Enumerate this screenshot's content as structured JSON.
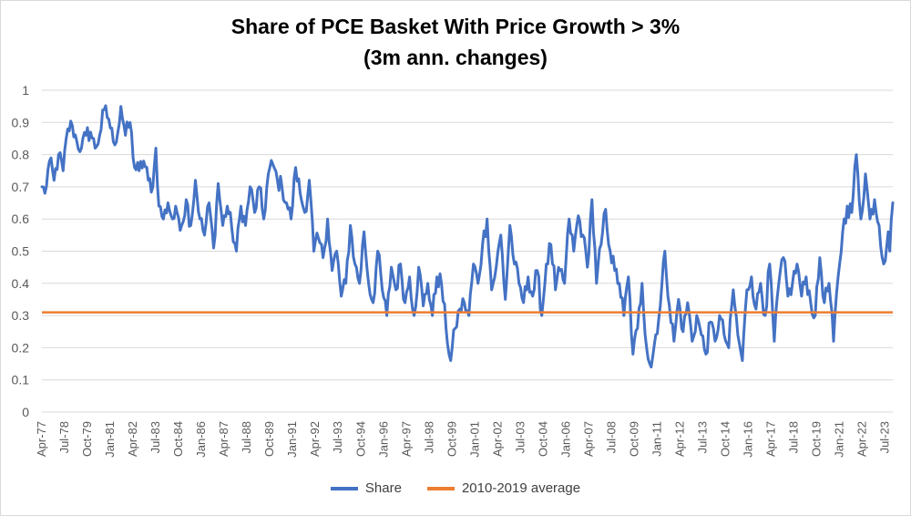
{
  "chart_data": {
    "type": "line",
    "title": "Share of PCE Basket With Price Growth > 3%",
    "subtitle": "(3m ann. changes)",
    "ylim": [
      0,
      1
    ],
    "yticks": [
      "0",
      "0.1",
      "0.2",
      "0.3",
      "0.4",
      "0.5",
      "0.6",
      "0.7",
      "0.8",
      "0.9",
      "1"
    ],
    "x_tick_labels": [
      "Apr-77",
      "Jul-78",
      "Oct-79",
      "Jan-81",
      "Apr-82",
      "Jul-83",
      "Oct-84",
      "Jan-86",
      "Apr-87",
      "Jul-88",
      "Oct-89",
      "Jan-91",
      "Apr-92",
      "Jul-93",
      "Oct-94",
      "Jan-96",
      "Apr-97",
      "Jul-98",
      "Oct-99",
      "Jan-01",
      "Apr-02",
      "Jul-03",
      "Oct-04",
      "Jan-06",
      "Apr-07",
      "Jul-08",
      "Oct-09",
      "Jan-11",
      "Apr-12",
      "Jul-13",
      "Oct-14",
      "Jan-16",
      "Apr-17",
      "Jul-18",
      "Oct-19",
      "Jan-21",
      "Apr-22",
      "Jul-23"
    ],
    "legend_position": "bottom",
    "series": [
      {
        "name": "Share",
        "color": "#4472c4",
        "x_start": "1977-04",
        "x_end": "2023-12",
        "anchors": [
          [
            "1977-04",
            0.7
          ],
          [
            "1977-06",
            0.68
          ],
          [
            "1977-09",
            0.78
          ],
          [
            "1977-12",
            0.72
          ],
          [
            "1978-03",
            0.8
          ],
          [
            "1978-06",
            0.75
          ],
          [
            "1978-09",
            0.88
          ],
          [
            "1978-12",
            0.89
          ],
          [
            "1979-03",
            0.84
          ],
          [
            "1979-06",
            0.82
          ],
          [
            "1979-09",
            0.86
          ],
          [
            "1979-12",
            0.87
          ],
          [
            "1980-03",
            0.82
          ],
          [
            "1980-06",
            0.86
          ],
          [
            "1980-09",
            0.94
          ],
          [
            "1980-12",
            0.91
          ],
          [
            "1981-03",
            0.84
          ],
          [
            "1981-06",
            0.87
          ],
          [
            "1981-08",
            0.95
          ],
          [
            "1981-11",
            0.86
          ],
          [
            "1982-02",
            0.9
          ],
          [
            "1982-05",
            0.76
          ],
          [
            "1982-08",
            0.75
          ],
          [
            "1982-11",
            0.78
          ],
          [
            "1983-02",
            0.72
          ],
          [
            "1983-05",
            0.7
          ],
          [
            "1983-07",
            0.82
          ],
          [
            "1983-09",
            0.64
          ],
          [
            "1983-12",
            0.6
          ],
          [
            "1984-03",
            0.65
          ],
          [
            "1984-06",
            0.6
          ],
          [
            "1984-09",
            0.62
          ],
          [
            "1984-12",
            0.58
          ],
          [
            "1985-03",
            0.66
          ],
          [
            "1985-06",
            0.58
          ],
          [
            "1985-09",
            0.72
          ],
          [
            "1985-12",
            0.6
          ],
          [
            "1986-03",
            0.55
          ],
          [
            "1986-06",
            0.65
          ],
          [
            "1986-09",
            0.51
          ],
          [
            "1986-12",
            0.71
          ],
          [
            "1987-03",
            0.58
          ],
          [
            "1987-06",
            0.64
          ],
          [
            "1987-09",
            0.57
          ],
          [
            "1987-12",
            0.5
          ],
          [
            "1988-03",
            0.64
          ],
          [
            "1988-06",
            0.58
          ],
          [
            "1988-09",
            0.7
          ],
          [
            "1988-12",
            0.62
          ],
          [
            "1989-03",
            0.7
          ],
          [
            "1989-06",
            0.6
          ],
          [
            "1989-09",
            0.74
          ],
          [
            "1989-12",
            0.77
          ],
          [
            "1990-03",
            0.72
          ],
          [
            "1990-06",
            0.7
          ],
          [
            "1990-09",
            0.65
          ],
          [
            "1990-12",
            0.6
          ],
          [
            "1991-03",
            0.76
          ],
          [
            "1991-06",
            0.68
          ],
          [
            "1991-09",
            0.62
          ],
          [
            "1991-12",
            0.72
          ],
          [
            "1992-03",
            0.5
          ],
          [
            "1992-06",
            0.54
          ],
          [
            "1992-09",
            0.48
          ],
          [
            "1992-12",
            0.6
          ],
          [
            "1993-03",
            0.44
          ],
          [
            "1993-06",
            0.5
          ],
          [
            "1993-09",
            0.36
          ],
          [
            "1993-12",
            0.4
          ],
          [
            "1994-03",
            0.58
          ],
          [
            "1994-06",
            0.46
          ],
          [
            "1994-09",
            0.4
          ],
          [
            "1994-12",
            0.56
          ],
          [
            "1995-03",
            0.4
          ],
          [
            "1995-06",
            0.34
          ],
          [
            "1995-09",
            0.5
          ],
          [
            "1995-12",
            0.38
          ],
          [
            "1996-03",
            0.3
          ],
          [
            "1996-06",
            0.45
          ],
          [
            "1996-09",
            0.38
          ],
          [
            "1996-12",
            0.46
          ],
          [
            "1997-03",
            0.34
          ],
          [
            "1997-06",
            0.42
          ],
          [
            "1997-09",
            0.3
          ],
          [
            "1997-12",
            0.45
          ],
          [
            "1998-03",
            0.33
          ],
          [
            "1998-06",
            0.4
          ],
          [
            "1998-09",
            0.3
          ],
          [
            "1998-12",
            0.42
          ],
          [
            "1999-03",
            0.4
          ],
          [
            "1999-06",
            0.26
          ],
          [
            "1999-09",
            0.16
          ],
          [
            "1999-12",
            0.26
          ],
          [
            "2000-03",
            0.32
          ],
          [
            "2000-06",
            0.34
          ],
          [
            "2000-09",
            0.3
          ],
          [
            "2000-12",
            0.46
          ],
          [
            "2001-03",
            0.4
          ],
          [
            "2001-06",
            0.52
          ],
          [
            "2001-09",
            0.6
          ],
          [
            "2001-12",
            0.38
          ],
          [
            "2002-03",
            0.45
          ],
          [
            "2002-06",
            0.55
          ],
          [
            "2002-09",
            0.35
          ],
          [
            "2002-12",
            0.58
          ],
          [
            "2003-03",
            0.46
          ],
          [
            "2003-06",
            0.4
          ],
          [
            "2003-09",
            0.34
          ],
          [
            "2003-12",
            0.42
          ],
          [
            "2004-03",
            0.36
          ],
          [
            "2004-06",
            0.44
          ],
          [
            "2004-09",
            0.3
          ],
          [
            "2004-12",
            0.46
          ],
          [
            "2005-03",
            0.52
          ],
          [
            "2005-06",
            0.38
          ],
          [
            "2005-09",
            0.44
          ],
          [
            "2005-12",
            0.4
          ],
          [
            "2006-03",
            0.6
          ],
          [
            "2006-06",
            0.5
          ],
          [
            "2006-09",
            0.61
          ],
          [
            "2006-12",
            0.55
          ],
          [
            "2007-03",
            0.45
          ],
          [
            "2007-06",
            0.66
          ],
          [
            "2007-09",
            0.4
          ],
          [
            "2007-12",
            0.52
          ],
          [
            "2008-03",
            0.63
          ],
          [
            "2008-06",
            0.5
          ],
          [
            "2008-09",
            0.44
          ],
          [
            "2008-12",
            0.4
          ],
          [
            "2009-03",
            0.3
          ],
          [
            "2009-06",
            0.42
          ],
          [
            "2009-09",
            0.18
          ],
          [
            "2009-12",
            0.26
          ],
          [
            "2010-03",
            0.4
          ],
          [
            "2010-06",
            0.2
          ],
          [
            "2010-09",
            0.14
          ],
          [
            "2010-12",
            0.24
          ],
          [
            "2011-03",
            0.33
          ],
          [
            "2011-06",
            0.5
          ],
          [
            "2011-09",
            0.33
          ],
          [
            "2011-12",
            0.22
          ],
          [
            "2012-03",
            0.35
          ],
          [
            "2012-06",
            0.25
          ],
          [
            "2012-09",
            0.34
          ],
          [
            "2012-12",
            0.22
          ],
          [
            "2013-03",
            0.3
          ],
          [
            "2013-06",
            0.24
          ],
          [
            "2013-09",
            0.18
          ],
          [
            "2013-12",
            0.28
          ],
          [
            "2014-03",
            0.22
          ],
          [
            "2014-06",
            0.3
          ],
          [
            "2014-09",
            0.24
          ],
          [
            "2014-12",
            0.2
          ],
          [
            "2015-03",
            0.38
          ],
          [
            "2015-06",
            0.24
          ],
          [
            "2015-09",
            0.16
          ],
          [
            "2015-12",
            0.38
          ],
          [
            "2016-03",
            0.42
          ],
          [
            "2016-06",
            0.32
          ],
          [
            "2016-09",
            0.4
          ],
          [
            "2016-12",
            0.3
          ],
          [
            "2017-03",
            0.46
          ],
          [
            "2017-06",
            0.22
          ],
          [
            "2017-09",
            0.4
          ],
          [
            "2017-12",
            0.48
          ],
          [
            "2018-03",
            0.36
          ],
          [
            "2018-06",
            0.4
          ],
          [
            "2018-09",
            0.46
          ],
          [
            "2018-12",
            0.36
          ],
          [
            "2019-03",
            0.42
          ],
          [
            "2019-06",
            0.34
          ],
          [
            "2019-09",
            0.3
          ],
          [
            "2019-12",
            0.48
          ],
          [
            "2020-03",
            0.34
          ],
          [
            "2020-06",
            0.4
          ],
          [
            "2020-09",
            0.22
          ],
          [
            "2020-12",
            0.42
          ],
          [
            "2021-03",
            0.56
          ],
          [
            "2021-06",
            0.64
          ],
          [
            "2021-09",
            0.62
          ],
          [
            "2021-12",
            0.8
          ],
          [
            "2022-03",
            0.6
          ],
          [
            "2022-06",
            0.74
          ],
          [
            "2022-09",
            0.6
          ],
          [
            "2022-12",
            0.66
          ],
          [
            "2023-03",
            0.58
          ],
          [
            "2023-06",
            0.46
          ],
          [
            "2023-09",
            0.56
          ],
          [
            "2023-10",
            0.5
          ],
          [
            "2023-12",
            0.65
          ]
        ]
      },
      {
        "name": "2010-2019 average",
        "color": "#ed7d31",
        "value": 0.31
      }
    ]
  }
}
